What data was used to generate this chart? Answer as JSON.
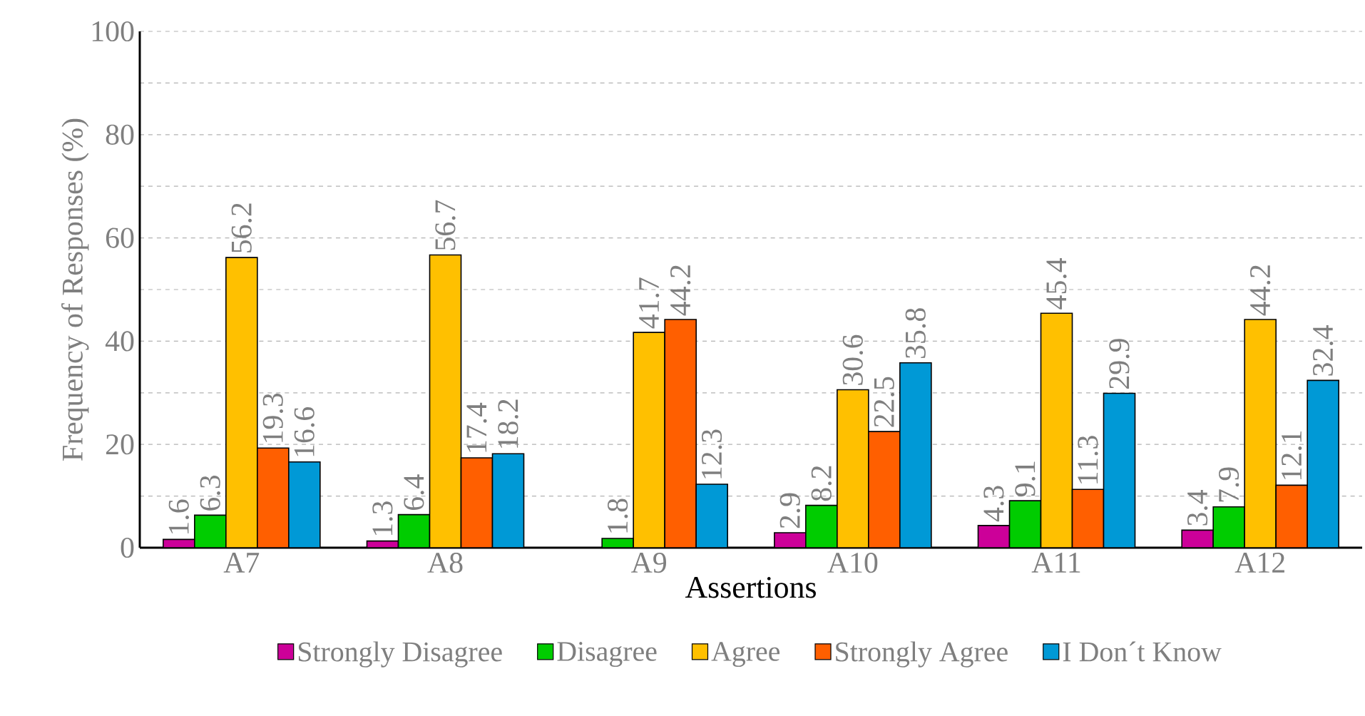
{
  "chart_data": {
    "type": "bar",
    "xlabel": "Assertions",
    "ylabel": "Frequency of Responses (%)",
    "categories": [
      "A7",
      "A8",
      "A9",
      "A10",
      "A11",
      "A12"
    ],
    "series": [
      {
        "name": "Strongly Disagree",
        "color": "#cc0099",
        "values": [
          1.6,
          1.3,
          null,
          2.9,
          4.3,
          3.4
        ]
      },
      {
        "name": "Disagree",
        "color": "#00cc00",
        "values": [
          6.3,
          6.4,
          1.8,
          8.2,
          9.1,
          7.9
        ]
      },
      {
        "name": "Agree",
        "color": "#ffc000",
        "values": [
          56.2,
          56.7,
          41.7,
          30.6,
          45.4,
          44.2
        ]
      },
      {
        "name": "Strongly Agree",
        "color": "#ff5f00",
        "values": [
          19.3,
          17.4,
          44.2,
          22.5,
          11.3,
          12.1
        ]
      },
      {
        "name": "I Don´t Know",
        "color": "#0099d6",
        "values": [
          16.6,
          18.2,
          12.3,
          35.8,
          29.9,
          32.4
        ]
      }
    ],
    "ylim": [
      0,
      100
    ],
    "yticks": [
      0,
      {
        "value": 10,
        "label": null
      },
      20,
      {
        "value": 30,
        "label": null
      },
      40,
      {
        "value": 50,
        "label": null
      },
      60,
      {
        "value": 70,
        "label": null
      },
      80,
      {
        "value": 90,
        "label": null
      },
      100
    ],
    "grid": "y",
    "legend": "bottom",
    "data_labels": true
  }
}
